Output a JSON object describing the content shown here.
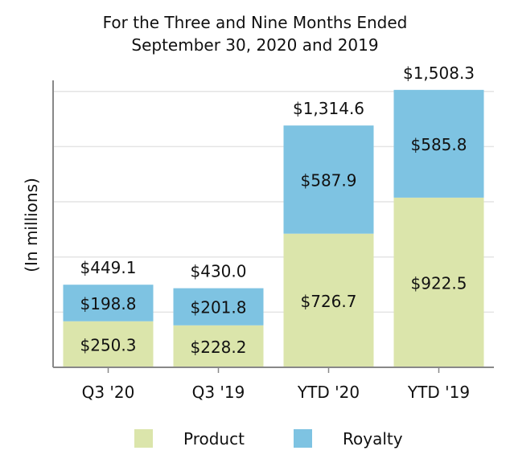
{
  "chart_data": {
    "type": "bar",
    "stacked": true,
    "title_lines": [
      "For the Three and Nine Months Ended",
      "September 30, 2020 and 2019"
    ],
    "ylabel": "(In millions)",
    "xlabel": "",
    "categories": [
      "Q3 '20",
      "Q3 '19",
      "YTD '20",
      "YTD '19"
    ],
    "series": [
      {
        "name": "Product",
        "color": "#dbe5ab",
        "values": [
          250.3,
          228.2,
          726.7,
          922.5
        ],
        "labels": [
          "$250.3",
          "$228.2",
          "$726.7",
          "$922.5"
        ]
      },
      {
        "name": "Royalty",
        "color": "#7ec3e2",
        "values": [
          198.8,
          201.8,
          587.9,
          585.8
        ],
        "labels": [
          "$198.8",
          "$201.8",
          "$587.9",
          "$585.8"
        ]
      }
    ],
    "totals": [
      449.1,
      430.0,
      1314.6,
      1508.3
    ],
    "total_labels": [
      "$449.1",
      "$430.0",
      "$1,314.6",
      "$1,508.3"
    ],
    "ylim": [
      0,
      1560
    ],
    "gridlines": [
      300,
      600,
      900,
      1200,
      1500
    ],
    "grid": true,
    "legend_position": "bottom"
  }
}
